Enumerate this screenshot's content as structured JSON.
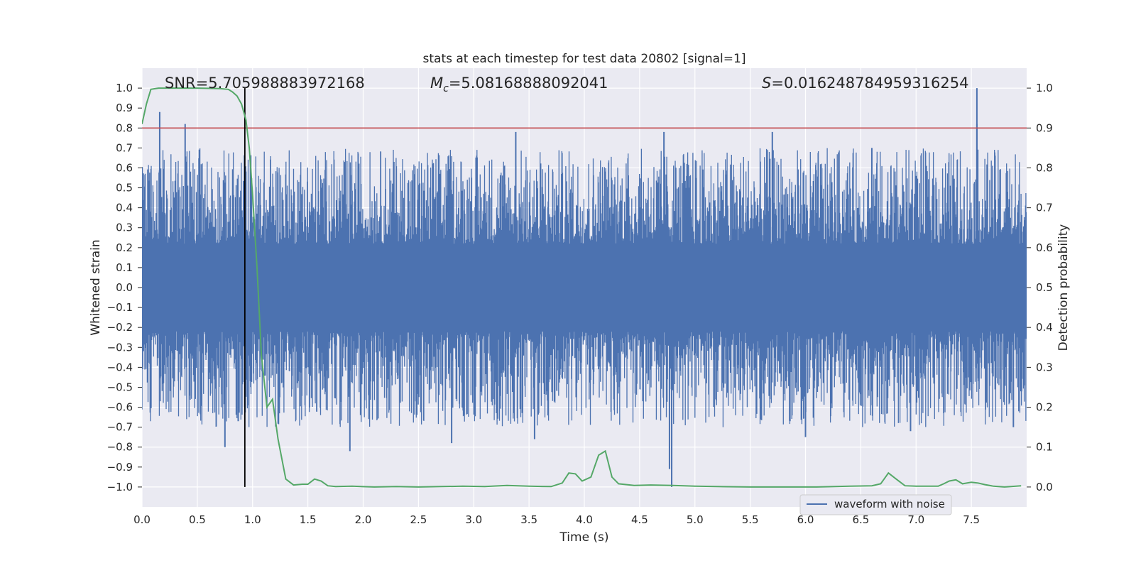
{
  "chart_data": {
    "type": "line",
    "title": "stats at each timestep for test data 20802 [signal=1]",
    "xlabel": "Time (s)",
    "ylabel_left": "Whitened strain",
    "ylabel_right": "Detection probability",
    "xlim": [
      0,
      8.0
    ],
    "ylim_left": [
      -1.1,
      1.1
    ],
    "ylim_right": [
      -0.05,
      1.05
    ],
    "x_ticks": [
      "0.0",
      "0.5",
      "1.0",
      "1.5",
      "2.0",
      "2.5",
      "3.0",
      "3.5",
      "4.0",
      "4.5",
      "5.0",
      "5.5",
      "6.0",
      "6.5",
      "7.0",
      "7.5"
    ],
    "y_ticks_left": [
      "1.0",
      "0.9",
      "0.8",
      "0.7",
      "0.6",
      "0.5",
      "0.4",
      "0.3",
      "0.2",
      "0.1",
      "0.0",
      "−0.1",
      "−0.2",
      "−0.3",
      "−0.4",
      "−0.5",
      "−0.6",
      "−0.7",
      "−0.8",
      "−0.9",
      "−1.0"
    ],
    "y_ticks_right": [
      "1.0",
      "0.9",
      "0.8",
      "0.7",
      "0.6",
      "0.5",
      "0.4",
      "0.3",
      "0.2",
      "0.1",
      "0.0"
    ],
    "grid": true,
    "legend": {
      "position": "bottom-right",
      "entries": [
        "waveform with noise"
      ]
    },
    "annotations": {
      "snr": "SNR=5.705988883972168",
      "mc_symbol": "M",
      "mc_sub": "c",
      "mc_value": "=5.08168888092041",
      "s_symbol": "S",
      "s_value": "=0.016248784959316254"
    },
    "threshold_line": {
      "y_right": 0.9,
      "color": "#c44e52"
    },
    "marker_line": {
      "x": 0.93,
      "y_range": [
        -1.0,
        1.0
      ],
      "color": "#000000"
    },
    "waveform": {
      "color": "#4c72b0",
      "core_amplitude": 0.2,
      "spikes": [
        {
          "x": 0.16,
          "y": 0.88
        },
        {
          "x": 0.39,
          "y": 0.82
        },
        {
          "x": 0.75,
          "y": -0.8
        },
        {
          "x": 0.87,
          "y": -0.67
        },
        {
          "x": 1.88,
          "y": -0.82
        },
        {
          "x": 2.8,
          "y": -0.78
        },
        {
          "x": 3.38,
          "y": 0.78
        },
        {
          "x": 3.55,
          "y": -0.76
        },
        {
          "x": 4.72,
          "y": 0.78
        },
        {
          "x": 4.77,
          "y": -0.91
        },
        {
          "x": 4.79,
          "y": -1.0
        },
        {
          "x": 5.7,
          "y": 0.78
        },
        {
          "x": 6.0,
          "y": -0.75
        },
        {
          "x": 6.6,
          "y": 0.7
        },
        {
          "x": 6.95,
          "y": -0.72
        },
        {
          "x": 7.55,
          "y": 1.0
        },
        {
          "x": 7.55,
          "y": 0.82
        },
        {
          "x": 7.88,
          "y": -0.7
        }
      ]
    },
    "probability": {
      "color": "#55a868",
      "x": [
        0.0,
        0.04,
        0.08,
        0.15,
        0.3,
        0.5,
        0.7,
        0.78,
        0.82,
        0.86,
        0.9,
        0.94,
        0.97,
        1.0,
        1.04,
        1.08,
        1.13,
        1.18,
        1.23,
        1.3,
        1.37,
        1.45,
        1.5,
        1.56,
        1.62,
        1.68,
        1.75,
        1.9,
        2.1,
        2.3,
        2.5,
        2.7,
        2.9,
        3.1,
        3.3,
        3.5,
        3.7,
        3.8,
        3.86,
        3.92,
        3.98,
        4.06,
        4.13,
        4.19,
        4.25,
        4.31,
        4.45,
        4.6,
        4.8,
        5.0,
        5.2,
        5.5,
        5.8,
        6.1,
        6.4,
        6.6,
        6.68,
        6.75,
        6.82,
        6.9,
        7.0,
        7.2,
        7.25,
        7.3,
        7.36,
        7.42,
        7.5,
        7.56,
        7.62,
        7.7,
        7.8,
        7.95
      ],
      "values": [
        0.91,
        0.96,
        0.997,
        1.0,
        1.0,
        1.0,
        0.999,
        0.997,
        0.99,
        0.98,
        0.96,
        0.92,
        0.85,
        0.73,
        0.55,
        0.33,
        0.2,
        0.22,
        0.12,
        0.02,
        0.005,
        0.007,
        0.007,
        0.02,
        0.015,
        0.003,
        0.001,
        0.002,
        0.0,
        0.001,
        0.0,
        0.001,
        0.002,
        0.001,
        0.004,
        0.002,
        0.001,
        0.01,
        0.035,
        0.033,
        0.015,
        0.025,
        0.08,
        0.09,
        0.025,
        0.008,
        0.004,
        0.005,
        0.004,
        0.002,
        0.001,
        0.0,
        0.0,
        0.0,
        0.002,
        0.003,
        0.008,
        0.035,
        0.02,
        0.003,
        0.002,
        0.002,
        0.008,
        0.015,
        0.018,
        0.008,
        0.012,
        0.01,
        0.006,
        0.002,
        0.0,
        0.003
      ]
    }
  }
}
